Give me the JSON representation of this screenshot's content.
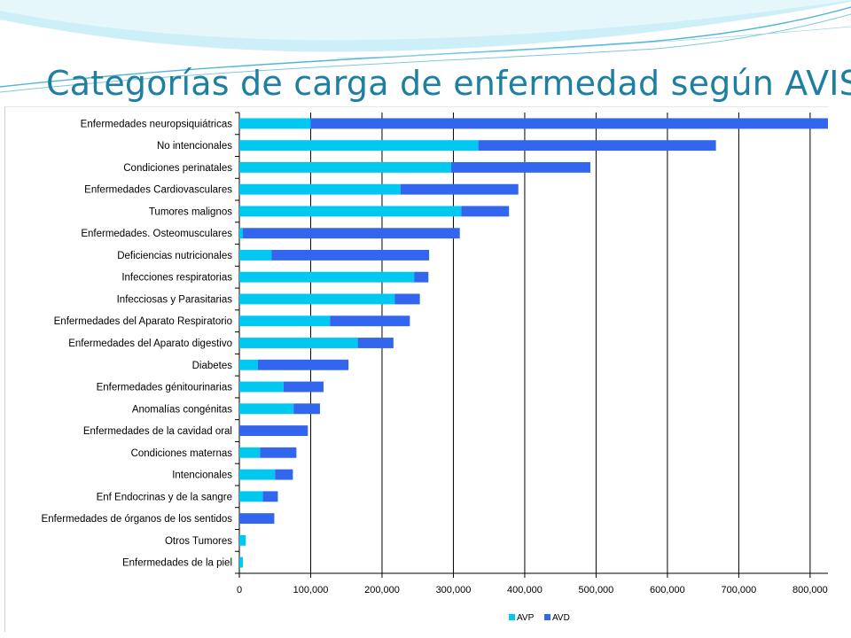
{
  "slide": {
    "title": "Categorías de carga de enfermedad según AVISA"
  },
  "colors": {
    "title": "#1f7fa0",
    "avp": "#00c8f0",
    "avd": "#3366ee",
    "grid": "#000000"
  },
  "chart_data": {
    "type": "bar",
    "orientation": "horizontal",
    "stacked": true,
    "title": "",
    "xlabel": "",
    "ylabel": "",
    "xlim": [
      0,
      825000
    ],
    "xticks": [
      0,
      100000,
      200000,
      300000,
      400000,
      500000,
      600000,
      700000,
      800000
    ],
    "xtick_labels": [
      "0",
      "100,000",
      "200,000",
      "300,000",
      "400,000",
      "500,000",
      "600,000",
      "700,000",
      "800,000"
    ],
    "grid": "vertical",
    "legend": "bottom-center",
    "categories": [
      "Enfermedades neuropsiquiátricas",
      "No intencionales",
      "Condiciones perinatales",
      "Enfermedades  Cardiovasculares",
      "Tumores malignos",
      "Enfermedades. Osteomusculares",
      "Deficiencias nutricionales",
      "Infecciones respiratorias",
      "Infecciosas y Parasitarias",
      "Enfermedades del  Aparato Respiratorio",
      "Enfermedades del Aparato digestivo",
      "Diabetes",
      "Enfermedades génitourinarias",
      "Anomalías congénitas",
      "Enfermedades de la cavidad oral",
      "Condiciones maternas",
      "Intencionales",
      "Enf Endocrinas y de la sangre",
      "Enfermedades de órganos de los sentidos",
      "Otros Tumores",
      "Enfermedades de la piel"
    ],
    "series": [
      {
        "name": "AVP",
        "values": [
          100000,
          335000,
          297000,
          226000,
          311000,
          5000,
          45000,
          245000,
          218000,
          127000,
          166000,
          26000,
          62000,
          76000,
          0,
          29000,
          50000,
          33000,
          0,
          9000,
          5000
        ]
      },
      {
        "name": "AVD",
        "values": [
          725000,
          333000,
          195000,
          165000,
          67000,
          304000,
          221000,
          20000,
          35000,
          112000,
          50000,
          127000,
          56000,
          37000,
          96000,
          51000,
          25000,
          21000,
          49000,
          0,
          0
        ]
      }
    ]
  }
}
